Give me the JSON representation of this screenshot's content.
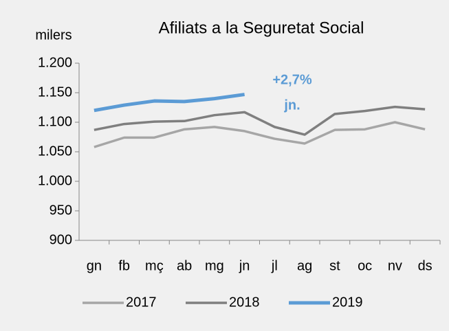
{
  "chart_data": {
    "type": "line",
    "title": "Afiliats a la Seguretat Social",
    "y_label": "milers",
    "categories": [
      "gn",
      "fb",
      "mç",
      "ab",
      "mg",
      "jn",
      "jl",
      "ag",
      "st",
      "oc",
      "nv",
      "ds"
    ],
    "series": [
      {
        "name": "2017",
        "color": "#a6a6a6",
        "values": [
          1058,
          1074,
          1074,
          1088,
          1092,
          1085,
          1072,
          1064,
          1087,
          1088,
          1100,
          1088
        ]
      },
      {
        "name": "2018",
        "color": "#7f7f7f",
        "values": [
          1087,
          1097,
          1101,
          1102,
          1112,
          1117,
          1092,
          1079,
          1114,
          1119,
          1126,
          1122
        ]
      },
      {
        "name": "2019",
        "color": "#5b9bd5",
        "values": [
          1120,
          1129,
          1136,
          1135,
          1140,
          1147,
          null,
          null,
          null,
          null,
          null,
          null
        ]
      }
    ],
    "annotations": [
      "+2,7%",
      "jn."
    ],
    "ylim": [
      900,
      1200
    ],
    "yticks": [
      {
        "value": 900,
        "label": "900"
      },
      {
        "value": 950,
        "label": "950"
      },
      {
        "value": 1000,
        "label": "1.000"
      },
      {
        "value": 1050,
        "label": "1.050"
      },
      {
        "value": 1100,
        "label": "1.100"
      },
      {
        "value": 1150,
        "label": "1.150"
      },
      {
        "value": 1200,
        "label": "1.200"
      }
    ],
    "grid": false,
    "legend": "bottom"
  }
}
